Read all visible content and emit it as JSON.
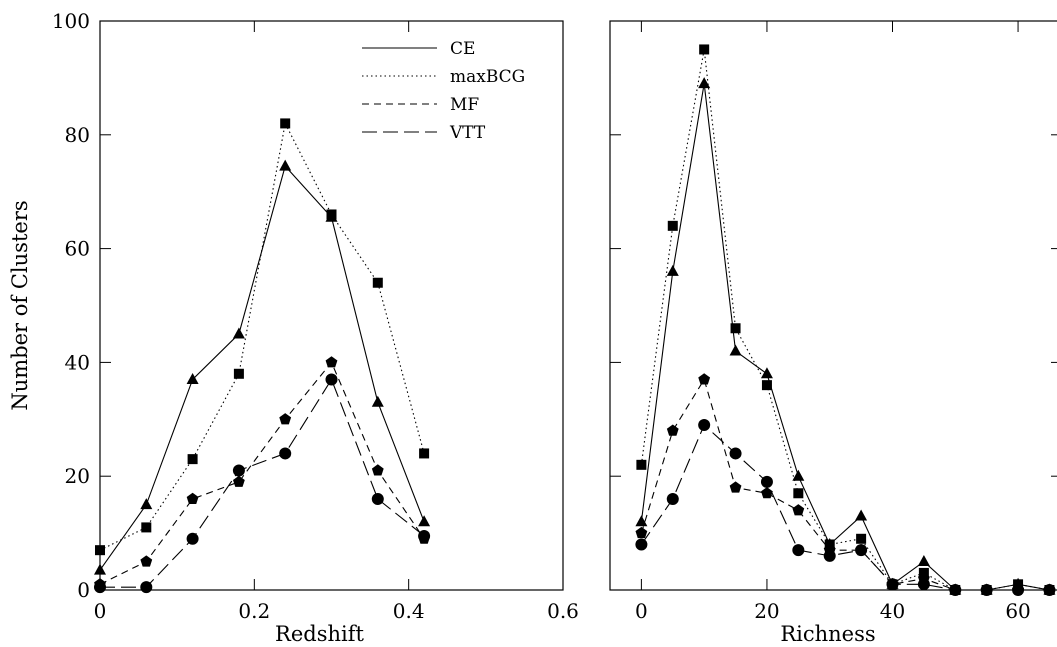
{
  "chart_data": [
    {
      "type": "line",
      "xlabel": "Redshift",
      "ylabel": "Number of Clusters",
      "xlim": [
        0,
        0.6
      ],
      "ylim": [
        0,
        100
      ],
      "xticks": [
        0,
        0.2,
        0.4,
        0.6
      ],
      "xtick_labels": [
        "0",
        "0.2",
        "0.4",
        "0.6"
      ],
      "yticks": [
        0,
        20,
        40,
        60,
        80,
        100
      ],
      "ytick_labels": [
        "0",
        "20",
        "40",
        "60",
        "80",
        "100"
      ],
      "legend_position": "top-right",
      "x": [
        0,
        0.06,
        0.12,
        0.18,
        0.24,
        0.3,
        0.36,
        0.42
      ],
      "series": [
        {
          "name": "CE",
          "line": "solid",
          "marker": "triangle",
          "values": [
            3.5,
            15,
            37,
            45,
            74.5,
            65.5,
            33,
            12
          ]
        },
        {
          "name": "maxBCG",
          "line": "dotted",
          "marker": "square",
          "values": [
            7,
            11,
            23,
            38,
            82,
            66,
            54,
            24
          ]
        },
        {
          "name": "MF",
          "line": "short-dash",
          "marker": "pentagon",
          "values": [
            1,
            5,
            16,
            19,
            30,
            40,
            21,
            9
          ]
        },
        {
          "name": "VTT",
          "line": "long-dash",
          "marker": "circle",
          "values": [
            0.5,
            0.5,
            9,
            21,
            24,
            37,
            16,
            9.5
          ]
        }
      ]
    },
    {
      "type": "line",
      "xlabel": "Richness",
      "ylabel": "",
      "xlim": [
        -5,
        67
      ],
      "ylim": [
        0,
        100
      ],
      "xticks": [
        0,
        20,
        40,
        60
      ],
      "xtick_labels": [
        "0",
        "20",
        "40",
        "60"
      ],
      "x": [
        0,
        5,
        10,
        15,
        20,
        25,
        30,
        35,
        40,
        45,
        50,
        55,
        60,
        65
      ],
      "series": [
        {
          "name": "CE",
          "line": "solid",
          "marker": "triangle",
          "values": [
            12,
            56,
            89,
            42,
            38,
            20,
            8,
            13,
            1,
            5,
            0,
            0,
            1,
            0
          ]
        },
        {
          "name": "maxBCG",
          "line": "dotted",
          "marker": "square",
          "values": [
            22,
            64,
            95,
            46,
            36,
            17,
            8,
            9,
            1,
            3,
            0,
            0,
            1,
            0
          ]
        },
        {
          "name": "MF",
          "line": "short-dash",
          "marker": "pentagon",
          "values": [
            10,
            28,
            37,
            18,
            17,
            14,
            7,
            7,
            1,
            2,
            0,
            0,
            0,
            0
          ]
        },
        {
          "name": "VTT",
          "line": "long-dash",
          "marker": "circle",
          "values": [
            8,
            16,
            29,
            24,
            19,
            7,
            6,
            7,
            1,
            1,
            0,
            0,
            0,
            0
          ]
        }
      ]
    }
  ]
}
